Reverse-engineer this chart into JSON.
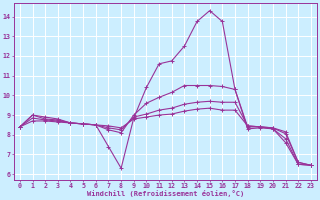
{
  "xlabel": "Windchill (Refroidissement éolien,°C)",
  "xlim": [
    -0.5,
    23.5
  ],
  "ylim": [
    5.7,
    14.7
  ],
  "yticks": [
    6,
    7,
    8,
    9,
    10,
    11,
    12,
    13,
    14
  ],
  "xticks": [
    0,
    1,
    2,
    3,
    4,
    5,
    6,
    7,
    8,
    9,
    10,
    11,
    12,
    13,
    14,
    15,
    16,
    17,
    18,
    19,
    20,
    21,
    22,
    23
  ],
  "background_color": "#cceeff",
  "grid_color": "#ffffff",
  "line_color": "#993399",
  "lines": [
    {
      "x": [
        0,
        1,
        2,
        3,
        4,
        5,
        6,
        7,
        8,
        9,
        10,
        11,
        12,
        13,
        14,
        15,
        16,
        17,
        18,
        19,
        20,
        21,
        22,
        23
      ],
      "y": [
        8.4,
        9.0,
        8.9,
        8.8,
        8.6,
        8.55,
        8.5,
        7.4,
        6.3,
        8.85,
        10.4,
        11.6,
        11.75,
        12.5,
        13.75,
        14.3,
        13.75,
        10.3,
        8.3,
        8.35,
        8.3,
        7.6,
        6.5,
        6.45
      ]
    },
    {
      "x": [
        0,
        1,
        2,
        3,
        4,
        5,
        6,
        7,
        8,
        9,
        10,
        11,
        12,
        13,
        14,
        15,
        16,
        17,
        18,
        19,
        20,
        21,
        22,
        23
      ],
      "y": [
        8.4,
        9.0,
        8.8,
        8.75,
        8.6,
        8.55,
        8.5,
        8.25,
        8.1,
        9.0,
        9.6,
        9.9,
        10.15,
        10.5,
        10.5,
        10.5,
        10.45,
        10.3,
        8.4,
        8.4,
        8.3,
        7.8,
        6.5,
        6.45
      ]
    },
    {
      "x": [
        0,
        1,
        2,
        3,
        4,
        5,
        6,
        7,
        8,
        9,
        10,
        11,
        12,
        13,
        14,
        15,
        16,
        17,
        18,
        19,
        20,
        21,
        22,
        23
      ],
      "y": [
        8.4,
        8.85,
        8.75,
        8.7,
        8.6,
        8.55,
        8.5,
        8.35,
        8.25,
        8.9,
        9.05,
        9.25,
        9.35,
        9.55,
        9.65,
        9.7,
        9.65,
        9.65,
        8.45,
        8.4,
        8.35,
        8.05,
        6.6,
        6.45
      ]
    },
    {
      "x": [
        0,
        1,
        2,
        3,
        4,
        5,
        6,
        7,
        8,
        9,
        10,
        11,
        12,
        13,
        14,
        15,
        16,
        17,
        18,
        19,
        20,
        21,
        22,
        23
      ],
      "y": [
        8.4,
        8.7,
        8.7,
        8.65,
        8.6,
        8.55,
        8.5,
        8.45,
        8.35,
        8.8,
        8.9,
        9.0,
        9.05,
        9.2,
        9.3,
        9.35,
        9.25,
        9.25,
        8.45,
        8.4,
        8.35,
        8.15,
        6.6,
        6.45
      ]
    }
  ]
}
